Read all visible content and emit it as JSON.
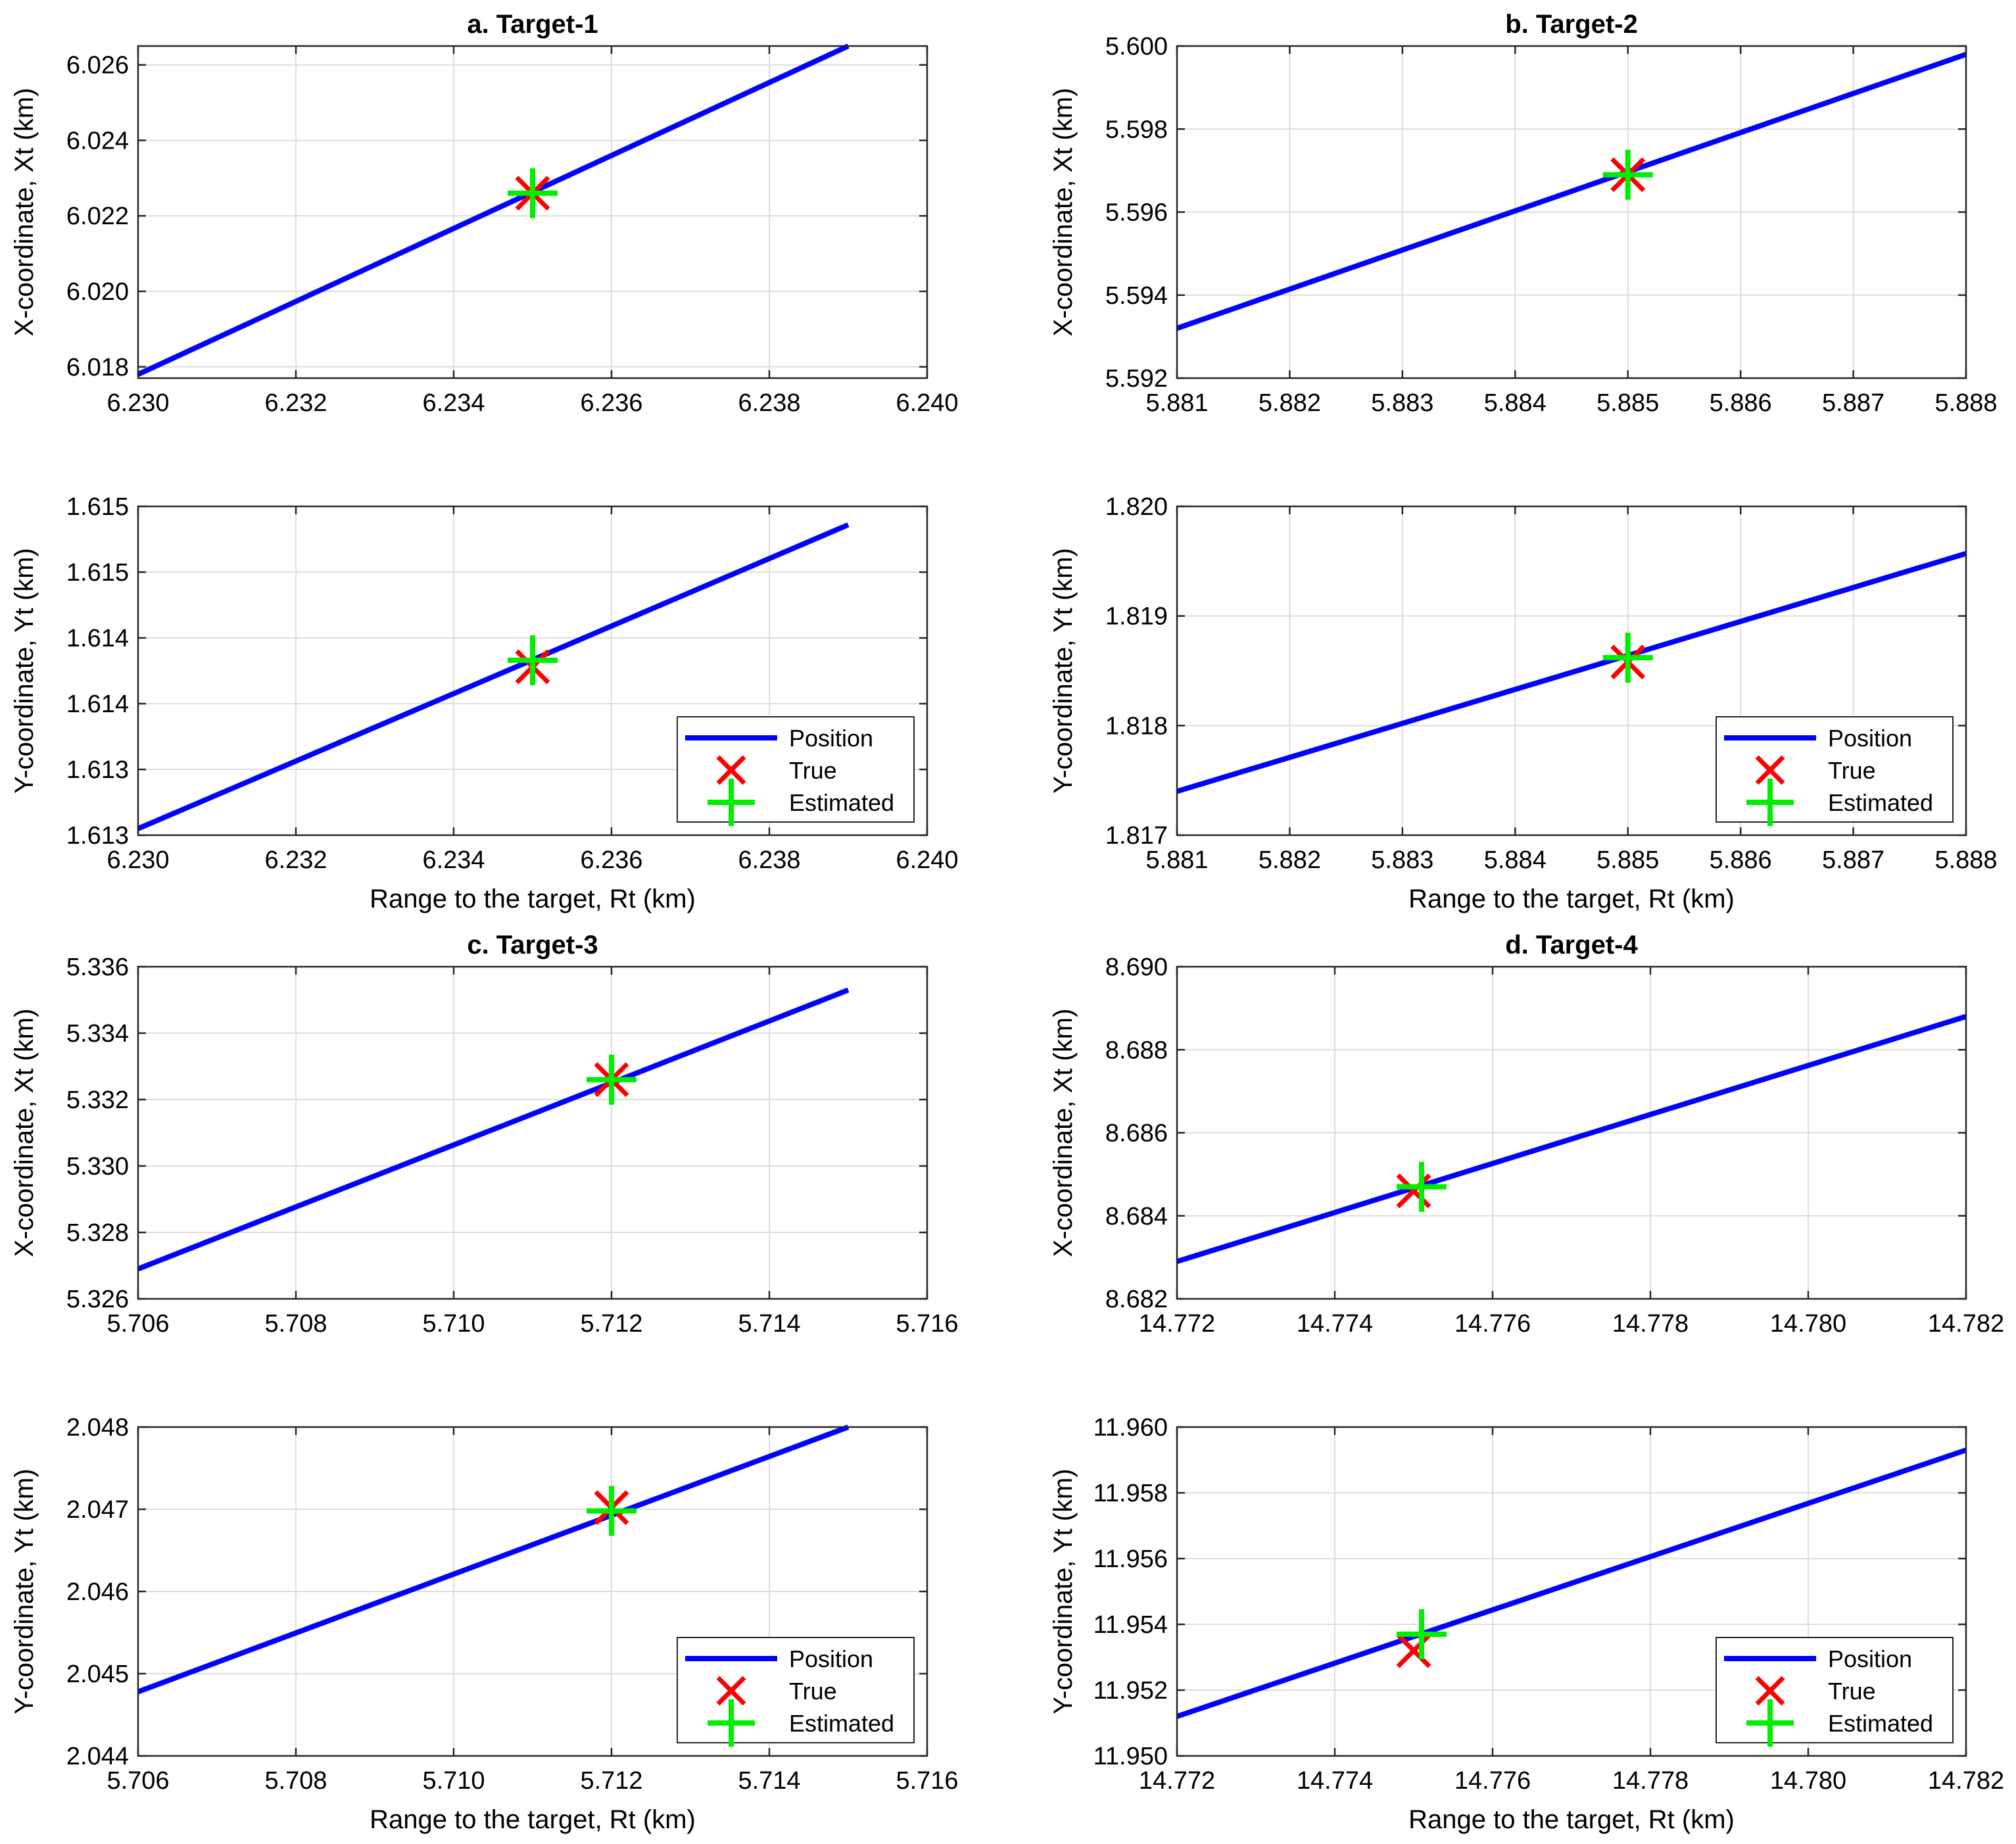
{
  "colors": {
    "position_line": "#0000ff",
    "true_marker": "#ff0000",
    "estimated_marker": "#00ee00",
    "grid": "#dedede",
    "axes": "#262626"
  },
  "chart_data": [
    {
      "id": "a-x",
      "type": "line",
      "title": "a. Target-1",
      "xlabel": "",
      "ylabel": "X-coordinate, Xt (km)",
      "xlim": [
        6.23,
        6.24
      ],
      "ylim": [
        6.0177,
        6.0265
      ],
      "xticks": [
        6.23,
        6.232,
        6.234,
        6.236,
        6.238,
        6.24
      ],
      "xtick_labels": [
        "6.230",
        "6.232",
        "6.234",
        "6.236",
        "6.238",
        "6.240"
      ],
      "yticks": [
        6.018,
        6.02,
        6.022,
        6.024,
        6.026
      ],
      "ytick_labels": [
        "6.018",
        "6.020",
        "6.022",
        "6.024",
        "6.026"
      ],
      "grid": true,
      "series": [
        {
          "name": "Position",
          "x": [
            6.23,
            6.239
          ],
          "y": [
            6.0178,
            6.0265
          ]
        },
        {
          "name": "True",
          "x": [
            6.235
          ],
          "y": [
            6.0226
          ]
        },
        {
          "name": "Estimated",
          "x": [
            6.235
          ],
          "y": [
            6.0226
          ]
        }
      ],
      "legend": null
    },
    {
      "id": "b-x",
      "type": "line",
      "title": "b. Target-2",
      "xlabel": "",
      "ylabel": "X-coordinate, Xt (km)",
      "xlim": [
        5.881,
        5.888
      ],
      "ylim": [
        5.592,
        5.6
      ],
      "xticks": [
        5.881,
        5.882,
        5.883,
        5.884,
        5.885,
        5.886,
        5.887,
        5.888
      ],
      "xtick_labels": [
        "5.881",
        "5.882",
        "5.883",
        "5.884",
        "5.885",
        "5.886",
        "5.887",
        "5.888"
      ],
      "yticks": [
        5.592,
        5.594,
        5.596,
        5.598,
        5.6
      ],
      "ytick_labels": [
        "5.592",
        "5.594",
        "5.596",
        "5.598",
        "5.600"
      ],
      "grid": true,
      "series": [
        {
          "name": "Position",
          "x": [
            5.881,
            5.888
          ],
          "y": [
            5.5932,
            5.5998
          ]
        },
        {
          "name": "True",
          "x": [
            5.885
          ],
          "y": [
            5.5969
          ]
        },
        {
          "name": "Estimated",
          "x": [
            5.885
          ],
          "y": [
            5.5969
          ]
        }
      ],
      "legend": null
    },
    {
      "id": "a-y",
      "type": "line",
      "title": "",
      "xlabel": "Range to the target, Rt (km)",
      "ylabel": "Y-coordinate, Yt (km)",
      "xlim": [
        6.23,
        6.24
      ],
      "ylim": [
        1.6125,
        1.615
      ],
      "xticks": [
        6.23,
        6.232,
        6.234,
        6.236,
        6.238,
        6.24
      ],
      "xtick_labels": [
        "6.230",
        "6.232",
        "6.234",
        "6.236",
        "6.238",
        "6.240"
      ],
      "yticks": [
        1.6125,
        1.613,
        1.6135,
        1.614,
        1.6145,
        1.615
      ],
      "ytick_labels": [
        "1.613",
        "1.613",
        "1.614",
        "1.614",
        "1.615",
        "1.615"
      ],
      "grid": true,
      "series": [
        {
          "name": "Position",
          "x": [
            6.23,
            6.239
          ],
          "y": [
            1.61255,
            1.61486
          ]
        },
        {
          "name": "True",
          "x": [
            6.235
          ],
          "y": [
            1.61378
          ]
        },
        {
          "name": "Estimated",
          "x": [
            6.235
          ],
          "y": [
            1.61383
          ]
        }
      ],
      "legend": {
        "position": "bottom-right",
        "entries": [
          "Position",
          "True",
          "Estimated"
        ]
      }
    },
    {
      "id": "b-y",
      "type": "line",
      "title": "",
      "xlabel": "Range to the target, Rt (km)",
      "ylabel": "Y-coordinate, Yt (km)",
      "xlim": [
        5.881,
        5.888
      ],
      "ylim": [
        1.817,
        1.82
      ],
      "xticks": [
        5.881,
        5.882,
        5.883,
        5.884,
        5.885,
        5.886,
        5.887,
        5.888
      ],
      "xtick_labels": [
        "5.881",
        "5.882",
        "5.883",
        "5.884",
        "5.885",
        "5.886",
        "5.887",
        "5.888"
      ],
      "yticks": [
        1.817,
        1.818,
        1.819,
        1.82
      ],
      "ytick_labels": [
        "1.817",
        "1.818",
        "1.819",
        "1.820"
      ],
      "grid": true,
      "series": [
        {
          "name": "Position",
          "x": [
            5.881,
            5.888
          ],
          "y": [
            1.8174,
            1.81957
          ]
        },
        {
          "name": "True",
          "x": [
            5.885
          ],
          "y": [
            1.81858
          ]
        },
        {
          "name": "Estimated",
          "x": [
            5.885
          ],
          "y": [
            1.81862
          ]
        }
      ],
      "legend": {
        "position": "bottom-right",
        "entries": [
          "Position",
          "True",
          "Estimated"
        ]
      }
    },
    {
      "id": "c-x",
      "type": "line",
      "title": "c. Target-3",
      "xlabel": "",
      "ylabel": "X-coordinate, Xt (km)",
      "xlim": [
        5.706,
        5.716
      ],
      "ylim": [
        5.326,
        5.336
      ],
      "xticks": [
        5.706,
        5.708,
        5.71,
        5.712,
        5.714,
        5.716
      ],
      "xtick_labels": [
        "5.706",
        "5.708",
        "5.710",
        "5.712",
        "5.714",
        "5.716"
      ],
      "yticks": [
        5.326,
        5.328,
        5.33,
        5.332,
        5.334,
        5.336
      ],
      "ytick_labels": [
        "5.326",
        "5.328",
        "5.330",
        "5.332",
        "5.334",
        "5.336"
      ],
      "grid": true,
      "series": [
        {
          "name": "Position",
          "x": [
            5.706,
            5.715
          ],
          "y": [
            5.3269,
            5.3353
          ]
        },
        {
          "name": "True",
          "x": [
            5.712
          ],
          "y": [
            5.3326
          ]
        },
        {
          "name": "Estimated",
          "x": [
            5.712
          ],
          "y": [
            5.3326
          ]
        }
      ],
      "legend": null
    },
    {
      "id": "d-x",
      "type": "line",
      "title": "d. Target-4",
      "xlabel": "",
      "ylabel": "X-coordinate, Xt (km)",
      "xlim": [
        14.772,
        14.782
      ],
      "ylim": [
        8.682,
        8.69
      ],
      "xticks": [
        14.772,
        14.774,
        14.776,
        14.778,
        14.78,
        14.782
      ],
      "xtick_labels": [
        "14.772",
        "14.774",
        "14.776",
        "14.778",
        "14.780",
        "14.782"
      ],
      "yticks": [
        8.682,
        8.684,
        8.686,
        8.688,
        8.69
      ],
      "ytick_labels": [
        "8.682",
        "8.684",
        "8.686",
        "8.688",
        "8.690"
      ],
      "grid": true,
      "series": [
        {
          "name": "Position",
          "x": [
            14.772,
            14.782
          ],
          "y": [
            8.6829,
            8.6888
          ]
        },
        {
          "name": "True",
          "x": [
            14.775
          ],
          "y": [
            8.6846
          ]
        },
        {
          "name": "Estimated",
          "x": [
            14.7751
          ],
          "y": [
            8.6847
          ]
        }
      ],
      "legend": null
    },
    {
      "id": "c-y",
      "type": "line",
      "title": "",
      "xlabel": "Range to the target, Rt (km)",
      "ylabel": "Y-coordinate, Yt (km)",
      "xlim": [
        5.706,
        5.716
      ],
      "ylim": [
        2.044,
        2.048
      ],
      "xticks": [
        5.706,
        5.708,
        5.71,
        5.712,
        5.714,
        5.716
      ],
      "xtick_labels": [
        "5.706",
        "5.708",
        "5.710",
        "5.712",
        "5.714",
        "5.716"
      ],
      "yticks": [
        2.044,
        2.045,
        2.046,
        2.047,
        2.048
      ],
      "ytick_labels": [
        "2.044",
        "2.045",
        "2.046",
        "2.047",
        "2.048"
      ],
      "grid": true,
      "series": [
        {
          "name": "Position",
          "x": [
            5.706,
            5.715
          ],
          "y": [
            2.04478,
            2.048
          ]
        },
        {
          "name": "True",
          "x": [
            5.712
          ],
          "y": [
            2.04702
          ]
        },
        {
          "name": "Estimated",
          "x": [
            5.712
          ],
          "y": [
            2.04698
          ]
        }
      ],
      "legend": {
        "position": "bottom-right",
        "entries": [
          "Position",
          "True",
          "Estimated"
        ]
      }
    },
    {
      "id": "d-y",
      "type": "line",
      "title": "",
      "xlabel": "Range to the target, Rt (km)",
      "ylabel": "Y-coordinate, Yt (km)",
      "xlim": [
        14.772,
        14.782
      ],
      "ylim": [
        11.95,
        11.96
      ],
      "xticks": [
        14.772,
        14.774,
        14.776,
        14.778,
        14.78,
        14.782
      ],
      "xtick_labels": [
        "14.772",
        "14.774",
        "14.776",
        "14.778",
        "14.780",
        "14.782"
      ],
      "yticks": [
        11.95,
        11.952,
        11.954,
        11.956,
        11.958,
        11.96
      ],
      "ytick_labels": [
        "11.950",
        "11.952",
        "11.954",
        "11.956",
        "11.958",
        "11.960"
      ],
      "grid": true,
      "series": [
        {
          "name": "Position",
          "x": [
            14.772,
            14.782
          ],
          "y": [
            11.9512,
            11.9593
          ]
        },
        {
          "name": "True",
          "x": [
            14.775
          ],
          "y": [
            11.9532
          ]
        },
        {
          "name": "Estimated",
          "x": [
            14.7751
          ],
          "y": [
            11.9537
          ]
        }
      ],
      "legend": {
        "position": "bottom-right",
        "entries": [
          "Position",
          "True",
          "Estimated"
        ]
      }
    }
  ]
}
